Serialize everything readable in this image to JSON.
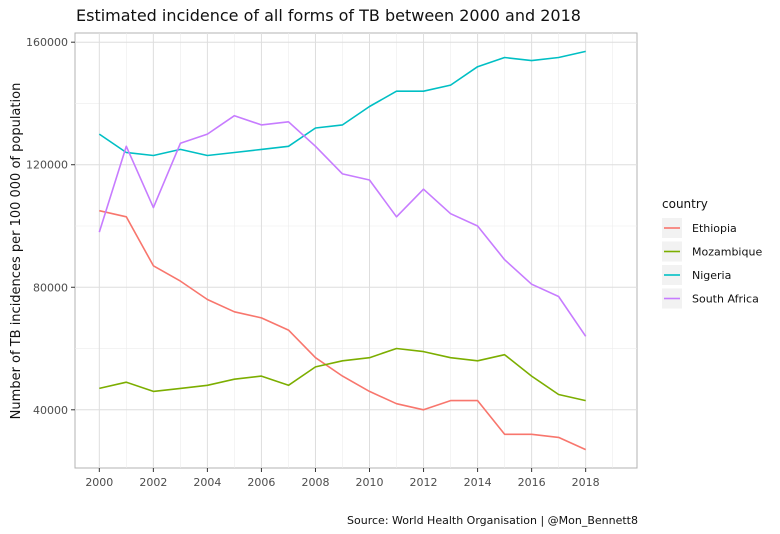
{
  "chart_data": {
    "type": "line",
    "title": "Estimated incidence of all forms of TB between 2000 and 2018",
    "ylabel": "Number of TB incidences per 100 000 of population",
    "xlabel": "",
    "caption": "Source: World Health Organisation | @Mon_Bennett8",
    "legend_title": "country",
    "legend_position": "right",
    "grid": true,
    "xlim": [
      1999.1,
      2019.9
    ],
    "ylim": [
      21000,
      163000
    ],
    "x_ticks": [
      2000,
      2002,
      2004,
      2006,
      2008,
      2010,
      2012,
      2014,
      2016,
      2018
    ],
    "x_tick_labels": [
      "2000",
      "2002",
      "2004",
      "2006",
      "2008",
      "2010",
      "2012",
      "2014",
      "2016",
      "2018"
    ],
    "y_ticks": [
      40000,
      80000,
      120000,
      160000
    ],
    "y_tick_labels": [
      "40000",
      "80000",
      "120000",
      "160000"
    ],
    "x": [
      2000,
      2001,
      2002,
      2003,
      2004,
      2005,
      2006,
      2007,
      2008,
      2009,
      2010,
      2011,
      2012,
      2013,
      2014,
      2015,
      2016,
      2017,
      2018
    ],
    "series": [
      {
        "name": "Ethiopia",
        "color": "#f8766d",
        "values": [
          105000,
          103000,
          87000,
          82000,
          76000,
          72000,
          70000,
          66000,
          57000,
          51000,
          46000,
          42000,
          40000,
          43000,
          43000,
          32000,
          32000,
          31000,
          27000
        ]
      },
      {
        "name": "Mozambique",
        "color": "#7cae00",
        "values": [
          47000,
          49000,
          46000,
          47000,
          48000,
          50000,
          51000,
          48000,
          54000,
          56000,
          57000,
          60000,
          59000,
          57000,
          56000,
          58000,
          51000,
          45000,
          43000
        ]
      },
      {
        "name": "Nigeria",
        "color": "#00bfc4",
        "values": [
          130000,
          124000,
          123000,
          125000,
          123000,
          124000,
          125000,
          126000,
          132000,
          133000,
          139000,
          144000,
          144000,
          146000,
          152000,
          155000,
          154000,
          155000,
          157000
        ]
      },
      {
        "name": "South Africa",
        "color": "#c77cff",
        "values": [
          98000,
          126000,
          106000,
          127000,
          130000,
          136000,
          133000,
          134000,
          126000,
          117000,
          115000,
          103000,
          112000,
          104000,
          100000,
          89000,
          81000,
          77000,
          64000
        ]
      }
    ]
  }
}
